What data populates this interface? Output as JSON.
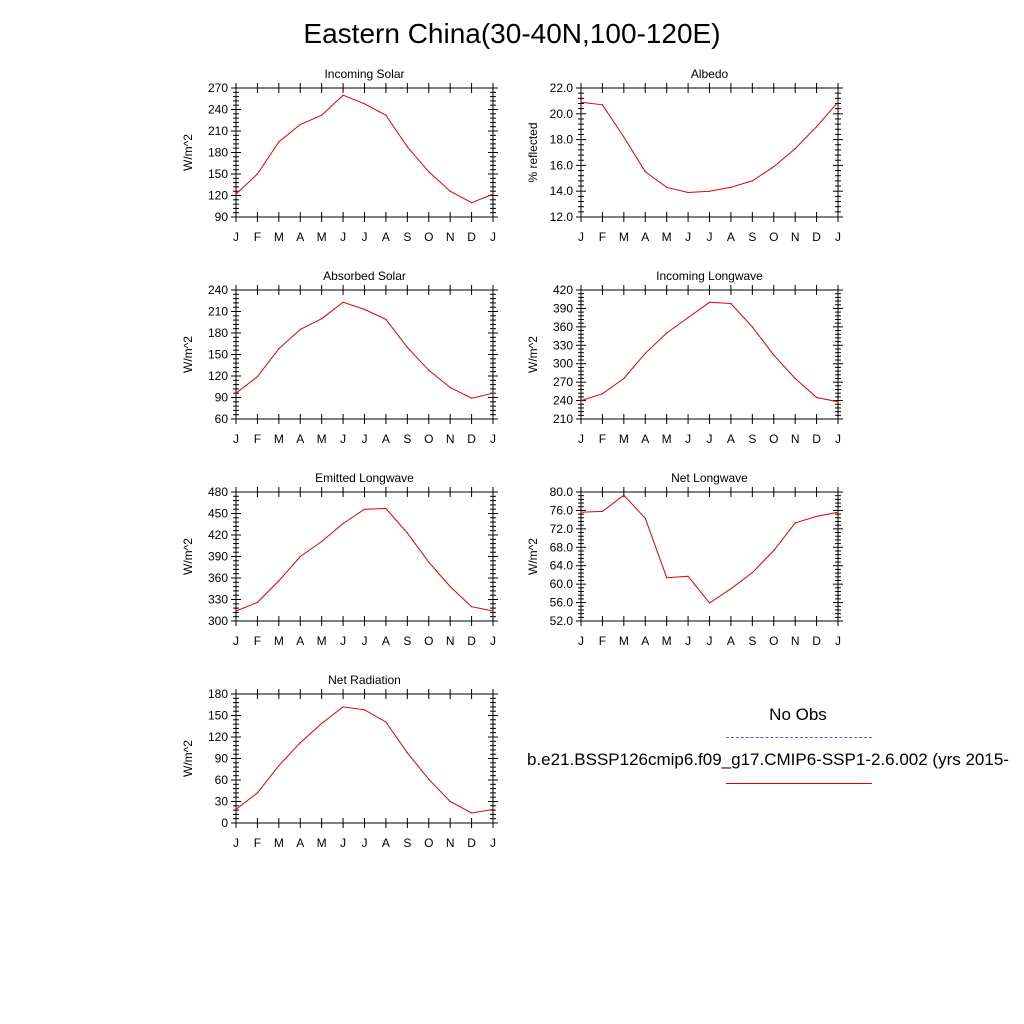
{
  "title": "Eastern China(30-40N,100-120E)",
  "colors": {
    "model_line": "#e00000",
    "obs_line": "#5a5ae0",
    "axis": "#000000"
  },
  "months": [
    "J",
    "F",
    "M",
    "A",
    "M",
    "J",
    "J",
    "A",
    "S",
    "O",
    "N",
    "D",
    "J"
  ],
  "legend": {
    "obs_label": "No Obs",
    "model_label": "b.e21.BSSP126cmip6.f09_g17.CMIP6-SSP1-2.6.002 (yrs 2015-"
  },
  "chart_data": [
    {
      "type": "line",
      "title": "Incoming Solar",
      "ylabel": "W/m^2",
      "ylim": [
        90,
        270
      ],
      "yticks": [
        90,
        120,
        150,
        180,
        210,
        240,
        270
      ],
      "ytick_labels": [
        "90",
        "120",
        "150",
        "180",
        "210",
        "240",
        "270"
      ],
      "categories": [
        "J",
        "F",
        "M",
        "A",
        "M",
        "J",
        "J",
        "A",
        "S",
        "O",
        "N",
        "D",
        "J"
      ],
      "values": [
        122,
        150,
        195,
        219,
        232,
        260,
        248,
        232,
        188,
        153,
        126,
        110,
        122
      ]
    },
    {
      "type": "line",
      "title": "Albedo",
      "ylabel": "% reflected",
      "ylim": [
        12.0,
        22.0
      ],
      "yticks": [
        12.0,
        14.0,
        16.0,
        18.0,
        20.0,
        22.0
      ],
      "ytick_labels": [
        "12.0",
        "14.0",
        "16.0",
        "18.0",
        "20.0",
        "22.0"
      ],
      "categories": [
        "J",
        "F",
        "M",
        "A",
        "M",
        "J",
        "J",
        "A",
        "S",
        "O",
        "N",
        "D",
        "J"
      ],
      "values": [
        20.9,
        20.7,
        18.2,
        15.5,
        14.3,
        13.9,
        14.0,
        14.3,
        14.8,
        15.9,
        17.3,
        19.0,
        20.9
      ]
    },
    {
      "type": "line",
      "title": "Absorbed Solar",
      "ylabel": "W/m^2",
      "ylim": [
        60,
        240
      ],
      "yticks": [
        60,
        90,
        120,
        150,
        180,
        210,
        240
      ],
      "ytick_labels": [
        "60",
        "90",
        "120",
        "150",
        "180",
        "210",
        "240"
      ],
      "categories": [
        "J",
        "F",
        "M",
        "A",
        "M",
        "J",
        "J",
        "A",
        "S",
        "O",
        "N",
        "D",
        "J"
      ],
      "values": [
        96,
        119,
        158,
        185,
        200,
        223,
        213,
        199,
        160,
        128,
        104,
        89,
        96
      ]
    },
    {
      "type": "line",
      "title": "Incoming Longwave",
      "ylabel": "W/m^2",
      "ylim": [
        210,
        420
      ],
      "yticks": [
        210,
        240,
        270,
        300,
        330,
        360,
        390,
        420
      ],
      "ytick_labels": [
        "210",
        "240",
        "270",
        "300",
        "330",
        "360",
        "390",
        "420"
      ],
      "categories": [
        "J",
        "F",
        "M",
        "A",
        "M",
        "J",
        "J",
        "A",
        "S",
        "O",
        "N",
        "D",
        "J"
      ],
      "values": [
        240,
        251,
        276,
        317,
        350,
        375,
        400,
        398,
        360,
        314,
        276,
        245,
        238
      ]
    },
    {
      "type": "line",
      "title": "Emitted Longwave",
      "ylabel": "W/m^2",
      "ylim": [
        300,
        480
      ],
      "yticks": [
        300,
        330,
        360,
        390,
        420,
        450,
        480
      ],
      "ytick_labels": [
        "300",
        "330",
        "360",
        "390",
        "420",
        "450",
        "480"
      ],
      "categories": [
        "J",
        "F",
        "M",
        "A",
        "M",
        "J",
        "J",
        "A",
        "S",
        "O",
        "N",
        "D",
        "J"
      ],
      "values": [
        314,
        326,
        356,
        390,
        411,
        436,
        456,
        457,
        423,
        382,
        348,
        320,
        314
      ]
    },
    {
      "type": "line",
      "title": "Net Longwave",
      "ylabel": "W/m^2",
      "ylim": [
        52.0,
        80.0
      ],
      "yticks": [
        52.0,
        56.0,
        60.0,
        64.0,
        68.0,
        72.0,
        76.0,
        80.0
      ],
      "ytick_labels": [
        "52.0",
        "56.0",
        "60.0",
        "64.0",
        "68.0",
        "72.0",
        "76.0",
        "80.0"
      ],
      "categories": [
        "J",
        "F",
        "M",
        "A",
        "M",
        "J",
        "J",
        "A",
        "S",
        "O",
        "N",
        "D",
        "J"
      ],
      "values": [
        75.6,
        75.8,
        79.3,
        74.3,
        61.4,
        61.7,
        55.9,
        59.0,
        62.5,
        67.3,
        73.3,
        74.7,
        75.6
      ]
    },
    {
      "type": "line",
      "title": "Net Radiation",
      "ylabel": "W/m^2",
      "ylim": [
        0,
        180
      ],
      "yticks": [
        0,
        30,
        60,
        90,
        120,
        150,
        180
      ],
      "ytick_labels": [
        "0",
        "30",
        "60",
        "90",
        "120",
        "150",
        "180"
      ],
      "categories": [
        "J",
        "F",
        "M",
        "A",
        "M",
        "J",
        "J",
        "A",
        "S",
        "O",
        "N",
        "D",
        "J"
      ],
      "values": [
        19,
        42,
        80,
        112,
        139,
        162,
        158,
        141,
        98,
        61,
        30,
        14,
        19
      ]
    }
  ]
}
